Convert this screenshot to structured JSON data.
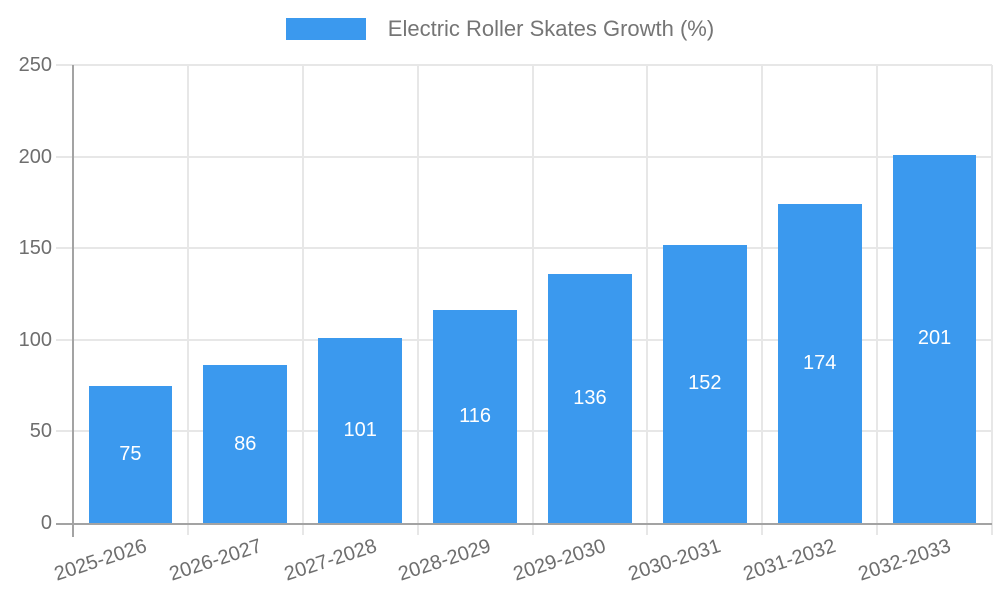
{
  "chart_data": {
    "type": "bar",
    "title": "",
    "legend_label": "Electric Roller Skates Growth (%)",
    "legend_position": "top",
    "categories": [
      "2025-2026",
      "2026-2027",
      "2027-2028",
      "2028-2029",
      "2029-2030",
      "2030-2031",
      "2031-2032",
      "2032-2033"
    ],
    "values": [
      75,
      86,
      101,
      116,
      136,
      152,
      174,
      201
    ],
    "xlabel": "",
    "ylabel": "",
    "ylim": [
      0,
      250
    ],
    "yticks": [
      0,
      50,
      100,
      150,
      200,
      250
    ],
    "grid": true,
    "colors": {
      "bar": "#3b99ee",
      "value_label": "#ffffff",
      "grid": "#e7e7e7",
      "axis": "#a3a3a3",
      "tick_text": "#6e6e6e",
      "legend_text": "#757575"
    }
  }
}
